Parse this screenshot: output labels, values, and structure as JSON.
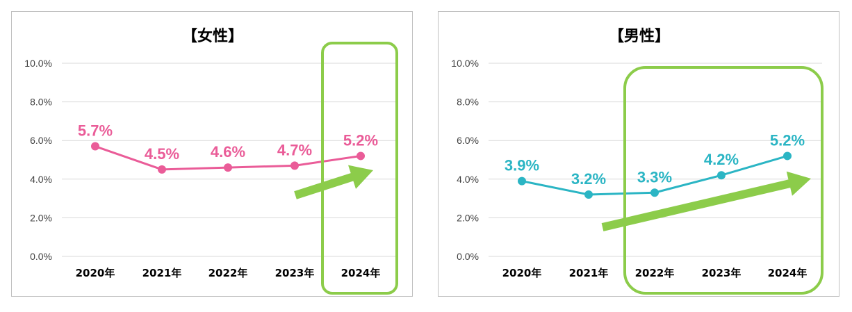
{
  "chart_data": [
    {
      "type": "line",
      "title": "【女性】",
      "categories": [
        "2020年",
        "2021年",
        "2022年",
        "2023年",
        "2024年"
      ],
      "series": [
        {
          "values": [
            5.7,
            4.5,
            4.6,
            4.7,
            5.2
          ],
          "labels": [
            "5.7%",
            "4.5%",
            "4.6%",
            "4.7%",
            "5.2%"
          ],
          "color": "#ea5c98"
        }
      ],
      "yticks": [
        "0.0%",
        "2.0%",
        "4.0%",
        "6.0%",
        "8.0%",
        "10.0%"
      ],
      "ylim": [
        0,
        10
      ],
      "grid": true,
      "legend": "none",
      "highlight": {
        "from_category": "2024年",
        "to_category": "2024年",
        "color": "#8ccc4a"
      },
      "trend_arrow": {
        "color": "#8ccc4a",
        "direction": "up"
      }
    },
    {
      "type": "line",
      "title": "【男性】",
      "categories": [
        "2020年",
        "2021年",
        "2022年",
        "2023年",
        "2024年"
      ],
      "series": [
        {
          "values": [
            3.9,
            3.2,
            3.3,
            4.2,
            5.2
          ],
          "labels": [
            "3.9%",
            "3.2%",
            "3.3%",
            "4.2%",
            "5.2%"
          ],
          "color": "#2bb5c4"
        }
      ],
      "yticks": [
        "0.0%",
        "2.0%",
        "4.0%",
        "6.0%",
        "8.0%",
        "10.0%"
      ],
      "ylim": [
        0,
        10
      ],
      "grid": true,
      "legend": "none",
      "highlight": {
        "from_category": "2022年",
        "to_category": "2024年",
        "color": "#8ccc4a"
      },
      "trend_arrow": {
        "color": "#8ccc4a",
        "direction": "up"
      }
    }
  ]
}
